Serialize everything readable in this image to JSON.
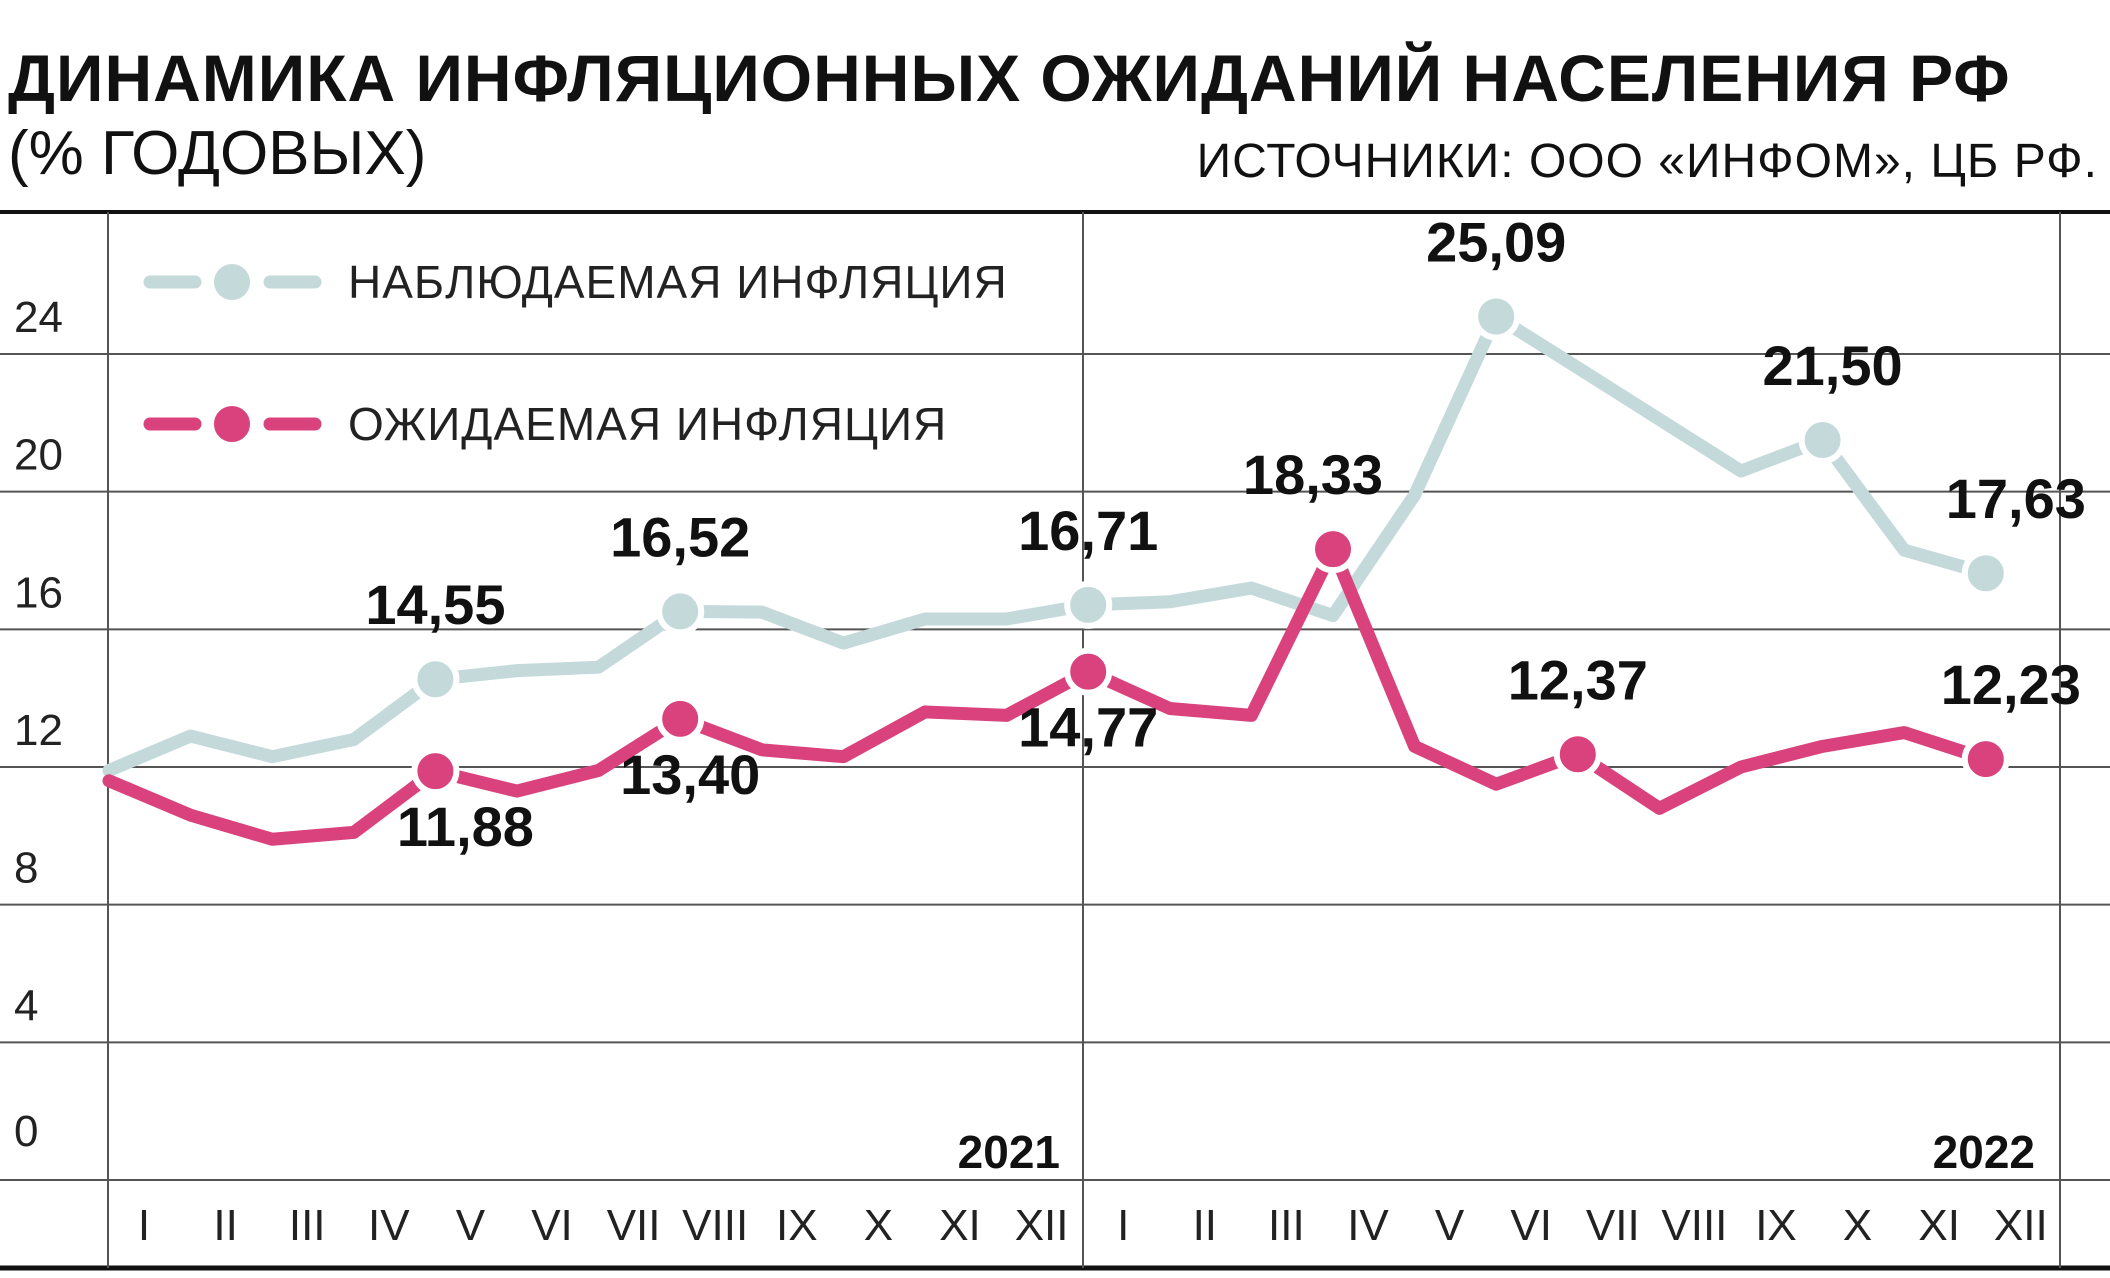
{
  "header": {
    "title": "ДИНАМИКА ИНФЛЯЦИОННЫХ ОЖИДАНИЙ НАСЕЛЕНИЯ РФ",
    "subtitle": "(% ГОДОВЫХ)",
    "source": "ИСТОЧНИКИ: ООО «ИНФОМ», ЦБ РФ."
  },
  "chart_data": {
    "type": "line",
    "categories": [
      "I",
      "II",
      "III",
      "IV",
      "V",
      "VI",
      "VII",
      "VIII",
      "IX",
      "X",
      "XI",
      "XII",
      "I",
      "II",
      "III",
      "IV",
      "V",
      "VI",
      "VII",
      "VIII",
      "IX",
      "X",
      "XI",
      "XII"
    ],
    "years": [
      "2021",
      "2022"
    ],
    "yticks": [
      0,
      4,
      8,
      12,
      16,
      20,
      24
    ],
    "ylim": [
      0,
      28
    ],
    "grid": true,
    "legend_position": "top-left",
    "series": [
      {
        "name": "НАБЛЮДАЕМАЯ ИНФЛЯЦИЯ",
        "color": "#c4d9da",
        "values": [
          11.9,
          12.9,
          12.3,
          12.8,
          14.55,
          14.8,
          14.9,
          16.52,
          16.5,
          15.6,
          16.3,
          16.3,
          16.71,
          16.8,
          17.2,
          16.4,
          19.9,
          25.09,
          23.6,
          22.1,
          20.6,
          21.5,
          18.3,
          17.63
        ],
        "labels": {
          "4": "14,55",
          "7": "16,52",
          "12": "16,71",
          "17": "25,09",
          "21": "21,50",
          "23": "17,63"
        }
      },
      {
        "name": "ОЖИДАЕМАЯ ИНФЛЯЦИЯ",
        "color": "#d9427c",
        "values": [
          11.6,
          10.6,
          9.9,
          10.1,
          11.88,
          11.3,
          11.9,
          13.4,
          12.5,
          12.3,
          13.6,
          13.5,
          14.77,
          13.7,
          13.5,
          18.33,
          12.6,
          11.5,
          12.37,
          10.8,
          12.0,
          12.6,
          13.0,
          12.23
        ],
        "labels": {
          "4": "11,88",
          "7": "13,40",
          "12": "14,77",
          "15": "18,33",
          "18": "12,37",
          "23": "12,23"
        }
      }
    ]
  }
}
